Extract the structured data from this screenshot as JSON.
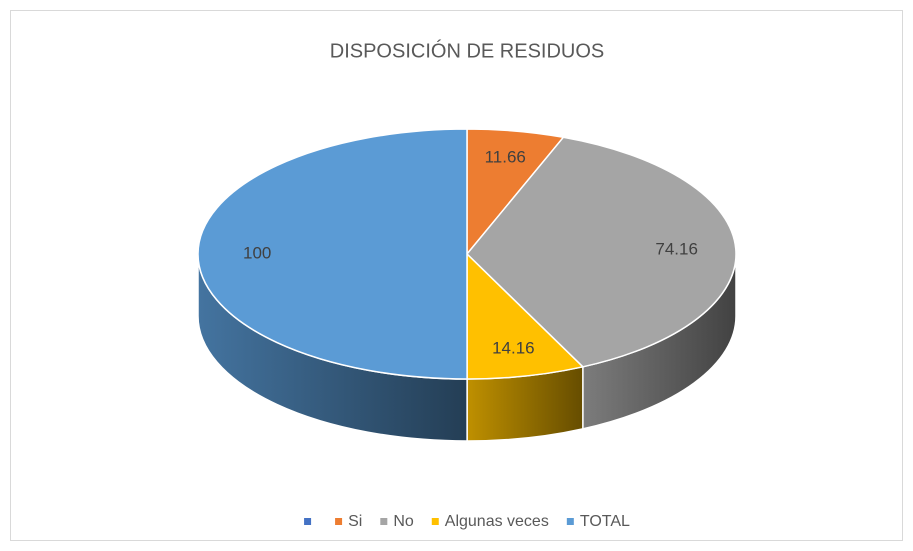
{
  "chart_data": {
    "type": "pie",
    "title": "DISPOSICIÓN DE RESIDUOS",
    "categories": [
      null,
      "Si",
      "No",
      "Algunas veces",
      "TOTAL"
    ],
    "values": [
      null,
      11.66,
      74.16,
      14.16,
      100
    ],
    "colors": [
      "#4472c4",
      "#ed7d31",
      "#a5a5a5",
      "#ffc000",
      "#5b9bd5"
    ],
    "legend": "bottom"
  }
}
